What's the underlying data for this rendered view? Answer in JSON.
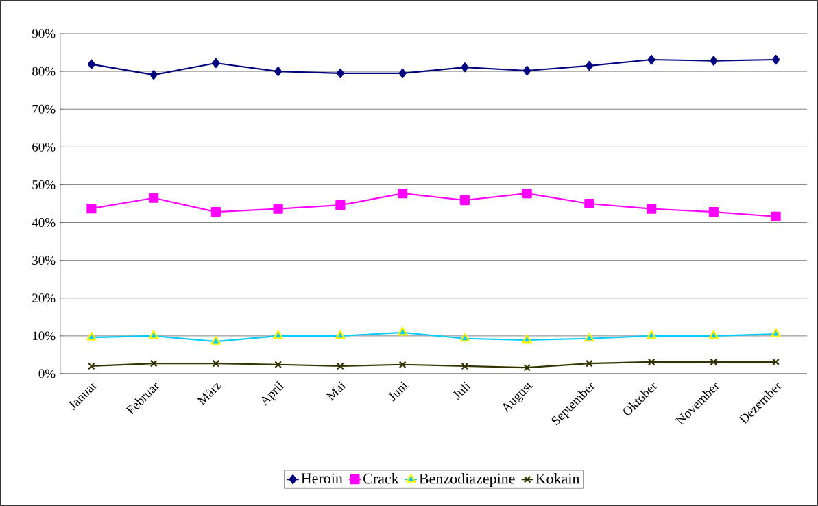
{
  "chart_data": {
    "type": "line",
    "categories": [
      "Januar",
      "Februar",
      "März",
      "April",
      "Mai",
      "Juni",
      "Juli",
      "August",
      "September",
      "Oktober",
      "November",
      "Dezember"
    ],
    "series": [
      {
        "name": "Heroin",
        "color": "#000080",
        "marker": "diamond",
        "values": [
          81.9,
          79.1,
          82.2,
          80.0,
          79.5,
          79.5,
          81.1,
          80.2,
          81.5,
          83.1,
          82.8,
          83.1
        ]
      },
      {
        "name": "Crack",
        "color": "#ff00ff",
        "marker": "square",
        "values": [
          43.7,
          46.5,
          42.8,
          43.6,
          44.6,
          47.7,
          45.9,
          47.7,
          45.0,
          43.6,
          42.8,
          41.6
        ]
      },
      {
        "name": "Benzodiazepine",
        "color": "#00ccff",
        "marker": "triangle",
        "values": [
          9.6,
          10.0,
          8.5,
          10.0,
          10.0,
          10.9,
          9.3,
          8.9,
          9.3,
          10.0,
          10.0,
          10.5
        ]
      },
      {
        "name": "Kokain",
        "color": "#333300",
        "marker": "cross",
        "values": [
          2.0,
          2.7,
          2.7,
          2.4,
          2.0,
          2.4,
          2.0,
          1.6,
          2.7,
          3.1,
          3.1,
          3.1
        ]
      }
    ],
    "ylim": [
      0,
      90
    ],
    "yticks": [
      {
        "value": 0,
        "label": "0%"
      },
      {
        "value": 10,
        "label": "10%"
      },
      {
        "value": 20,
        "label": "20%"
      },
      {
        "value": 30,
        "label": "30%"
      },
      {
        "value": 40,
        "label": "40%"
      },
      {
        "value": 50,
        "label": "50%"
      },
      {
        "value": 60,
        "label": "60%"
      },
      {
        "value": 70,
        "label": "70%"
      },
      {
        "value": 80,
        "label": "80%"
      },
      {
        "value": 90,
        "label": "90%"
      }
    ],
    "grid": "y",
    "legend": "bottom",
    "line_style": "solid"
  }
}
